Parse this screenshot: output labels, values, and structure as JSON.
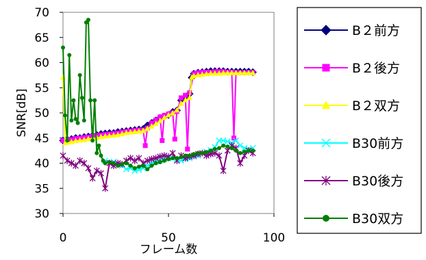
{
  "chart_data": {
    "type": "line",
    "xlabel": "フレーム数",
    "ylabel": "SNR[dB]",
    "xlim": [
      0,
      100
    ],
    "ylim": [
      30,
      70
    ],
    "xticks": [
      0,
      50,
      100
    ],
    "yticks": [
      30,
      35,
      40,
      45,
      50,
      55,
      60,
      65,
      70
    ],
    "grid": false,
    "legend_position": "right",
    "series": [
      {
        "name": "B２前方",
        "color": "#00007f",
        "marker": "diamond",
        "x": [
          0,
          2,
          4,
          6,
          8,
          10,
          12,
          14,
          16,
          18,
          20,
          22,
          24,
          26,
          28,
          30,
          32,
          34,
          36,
          38,
          40,
          42,
          44,
          46,
          48,
          50,
          52,
          54,
          56,
          57,
          58,
          59,
          60,
          61,
          62,
          64,
          66,
          68,
          70,
          72,
          74,
          76,
          78,
          80,
          82,
          84,
          86,
          88,
          90
        ],
        "y": [
          44.5,
          44.7,
          44.8,
          45.0,
          45.0,
          45.2,
          45.3,
          45.5,
          45.6,
          45.8,
          45.9,
          46.0,
          46.0,
          46.2,
          46.3,
          46.4,
          46.5,
          46.6,
          46.7,
          46.8,
          47.5,
          48.0,
          48.5,
          49.0,
          49.3,
          49.6,
          50.2,
          50.5,
          52.5,
          52.8,
          53.0,
          53.4,
          53.8,
          57.0,
          57.8,
          58.0,
          58.1,
          58.2,
          58.3,
          58.3,
          58.3,
          58.3,
          58.2,
          58.2,
          58.2,
          58.2,
          58.2,
          58.2,
          58.1
        ]
      },
      {
        "name": "B２後方",
        "color": "#ff00ff",
        "marker": "square",
        "x": [
          0,
          2,
          4,
          6,
          8,
          10,
          12,
          14,
          16,
          18,
          20,
          22,
          24,
          26,
          28,
          30,
          32,
          34,
          36,
          38,
          39,
          40,
          42,
          44,
          46,
          47,
          48,
          50,
          52,
          53,
          54,
          56,
          58,
          59,
          60,
          62,
          64,
          66,
          68,
          70,
          72,
          74,
          76,
          78,
          80,
          81,
          82,
          84,
          86,
          88,
          90
        ],
        "y": [
          44.5,
          44.6,
          44.7,
          44.9,
          45.0,
          45.1,
          45.2,
          45.4,
          45.5,
          45.6,
          45.7,
          45.8,
          45.9,
          46.0,
          46.2,
          46.3,
          46.4,
          46.5,
          46.6,
          46.6,
          43.5,
          47.0,
          48.0,
          48.6,
          49.2,
          44.5,
          49.5,
          49.8,
          50.0,
          44.8,
          50.3,
          53.0,
          53.5,
          42.8,
          54.0,
          57.8,
          58.0,
          58.1,
          58.1,
          58.1,
          58.2,
          58.2,
          58.2,
          58.1,
          58.1,
          45.0,
          58.0,
          58.0,
          58.0,
          58.0,
          58.0
        ]
      },
      {
        "name": "B２双方",
        "color": "#ffff00",
        "marker": "triangle",
        "x": [
          0,
          1,
          2,
          4,
          6,
          8,
          10,
          12,
          14,
          16,
          18,
          20,
          22,
          24,
          26,
          28,
          30,
          32,
          34,
          36,
          38,
          40,
          42,
          44,
          46,
          48,
          50,
          52,
          54,
          56,
          58,
          60,
          61,
          62,
          64,
          66,
          68,
          70,
          72,
          74,
          76,
          78,
          80,
          82,
          84,
          86,
          88,
          90
        ],
        "y": [
          57.0,
          44.0,
          44.1,
          44.2,
          44.4,
          44.5,
          44.6,
          44.8,
          44.9,
          45.0,
          45.2,
          45.3,
          45.4,
          45.5,
          45.6,
          45.8,
          46.0,
          46.1,
          46.2,
          46.3,
          46.4,
          46.8,
          47.3,
          47.8,
          48.4,
          49.0,
          49.5,
          49.9,
          50.5,
          51.8,
          52.5,
          53.0,
          57.0,
          57.3,
          57.5,
          57.6,
          57.7,
          57.8,
          57.8,
          57.8,
          57.9,
          57.9,
          57.9,
          57.9,
          57.9,
          57.9,
          57.9,
          57.9
        ]
      },
      {
        "name": "B30前方",
        "color": "#00ffff",
        "marker": "x",
        "x": [
          20,
          24,
          28,
          30,
          32,
          34,
          36,
          38,
          40,
          42,
          44,
          46,
          48,
          50,
          52,
          54,
          56,
          58,
          60,
          62,
          64,
          66,
          68,
          70,
          72,
          74,
          76,
          78,
          80,
          82,
          84,
          86,
          88,
          90
        ],
        "y": [
          40.5,
          40.3,
          39.5,
          38.8,
          39.0,
          38.5,
          38.7,
          39.0,
          39.5,
          40.0,
          40.3,
          40.5,
          40.8,
          41.0,
          41.0,
          40.8,
          40.5,
          40.8,
          41.0,
          41.3,
          41.5,
          42.0,
          42.3,
          42.6,
          43.2,
          44.5,
          44.5,
          44.3,
          44.0,
          44.5,
          43.5,
          43.0,
          42.8,
          43.0
        ]
      },
      {
        "name": "B30後方",
        "color": "#7f007f",
        "marker": "asterisk",
        "x": [
          0,
          2,
          4,
          6,
          8,
          10,
          12,
          14,
          16,
          18,
          20,
          22,
          24,
          26,
          28,
          30,
          32,
          34,
          36,
          38,
          40,
          42,
          44,
          46,
          48,
          50,
          52,
          54,
          56,
          58,
          60,
          62,
          64,
          66,
          68,
          70,
          72,
          74,
          76,
          78,
          80,
          82,
          84,
          86,
          88,
          90
        ],
        "y": [
          41.5,
          40.5,
          40.0,
          39.5,
          40.5,
          40.0,
          39.0,
          37.0,
          38.5,
          38.0,
          35.0,
          40.0,
          39.5,
          40.0,
          39.8,
          40.5,
          41.0,
          40.5,
          41.0,
          40.0,
          40.5,
          40.8,
          41.0,
          41.3,
          41.5,
          41.3,
          42.0,
          40.5,
          41.5,
          41.0,
          41.3,
          41.5,
          41.8,
          42.0,
          41.5,
          41.8,
          42.0,
          41.5,
          38.5,
          42.5,
          43.5,
          43.0,
          40.0,
          41.5,
          42.5,
          42.0
        ]
      },
      {
        "name": "B30双方",
        "color": "#007f00",
        "marker": "circle",
        "x": [
          0,
          1,
          2,
          3,
          4,
          5,
          6,
          7,
          8,
          9,
          10,
          11,
          12,
          13,
          14,
          15,
          16,
          17,
          18,
          19,
          20,
          22,
          24,
          26,
          28,
          30,
          32,
          34,
          36,
          38,
          40,
          42,
          44,
          46,
          48,
          50,
          52,
          54,
          56,
          58,
          60,
          62,
          64,
          66,
          68,
          70,
          72,
          74,
          76,
          78,
          80,
          82,
          84,
          86,
          88,
          90
        ],
        "y": [
          63.0,
          49.5,
          44.5,
          61.5,
          48.5,
          52.5,
          48.8,
          48.0,
          57.5,
          53.0,
          48.5,
          68.0,
          68.5,
          52.5,
          44.5,
          52.5,
          42.0,
          43.5,
          41.5,
          40.5,
          40.0,
          40.2,
          40.0,
          39.5,
          39.8,
          40.0,
          39.5,
          39.0,
          39.3,
          39.5,
          38.8,
          39.5,
          40.0,
          40.2,
          40.5,
          40.8,
          41.0,
          41.0,
          41.2,
          41.5,
          41.5,
          41.8,
          42.0,
          42.0,
          42.2,
          42.5,
          42.8,
          43.0,
          43.5,
          43.3,
          43.0,
          42.5,
          42.0,
          42.3,
          42.5,
          42.5
        ]
      }
    ]
  }
}
